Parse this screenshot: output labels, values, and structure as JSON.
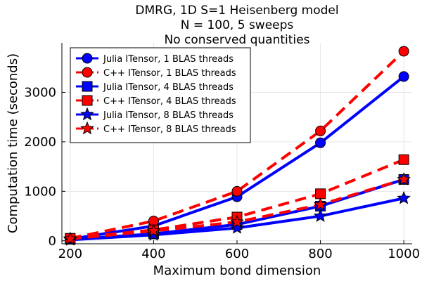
{
  "chart_data": {
    "type": "line",
    "title_lines": [
      "DMRG, 1D S=1 Heisenberg model",
      "N = 100, 5 sweeps",
      "No conserved quantities"
    ],
    "xlabel": "Maximum bond dimension",
    "ylabel": "Computation time (seconds)",
    "xlim": [
      180,
      1020
    ],
    "ylim": [
      -60,
      4000
    ],
    "x": [
      200,
      400,
      600,
      800,
      1000
    ],
    "xticks": [
      200,
      400,
      600,
      800,
      1000
    ],
    "yticks": [
      0,
      1000,
      2000,
      3000
    ],
    "grid": true,
    "legend_position": "top-left",
    "series": [
      {
        "name": "Julia ITensor, 1 BLAS threads",
        "values": [
          35,
          300,
          890,
          1980,
          3320
        ],
        "color": "#0000ff",
        "line": "solid",
        "marker": "circle"
      },
      {
        "name": "C++ ITensor, 1 BLAS threads",
        "values": [
          50,
          400,
          1000,
          2220,
          3830
        ],
        "color": "#ff0000",
        "line": "dashed",
        "marker": "circle"
      },
      {
        "name": "Julia ITensor, 4 BLAS threads",
        "values": [
          30,
          140,
          330,
          700,
          1240
        ],
        "color": "#0000ff",
        "line": "solid",
        "marker": "square"
      },
      {
        "name": "C++ ITensor, 4 BLAS threads",
        "values": [
          50,
          220,
          480,
          950,
          1640
        ],
        "color": "#ff0000",
        "line": "dashed",
        "marker": "square"
      },
      {
        "name": "Julia ITensor, 8 BLAS threads",
        "values": [
          20,
          120,
          260,
          500,
          860
        ],
        "color": "#0000ff",
        "line": "solid",
        "marker": "star"
      },
      {
        "name": "C++ ITensor, 8 BLAS threads",
        "values": [
          40,
          200,
          380,
          730,
          1240
        ],
        "color": "#ff0000",
        "line": "dashed",
        "marker": "star"
      }
    ]
  }
}
